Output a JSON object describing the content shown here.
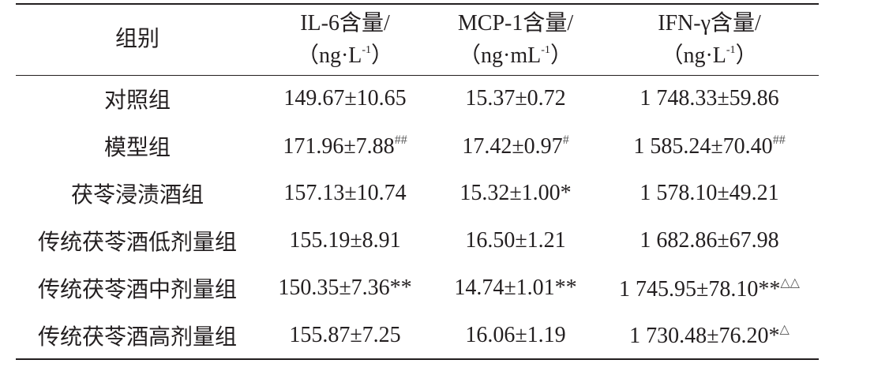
{
  "table": {
    "header": [
      {
        "line1": "组别"
      },
      {
        "line1": "IL-6含量/",
        "line2": "（ng·L",
        "sup": "-1",
        "end": "）"
      },
      {
        "line1": "MCP-1含量/",
        "line2": "（ng·mL",
        "sup": "-1",
        "end": "）"
      },
      {
        "line1": "IFN-γ含量/",
        "line2": "（ng·L",
        "sup": "-1",
        "end": "）"
      }
    ],
    "rows": [
      [
        {
          "text": "对照组"
        },
        {
          "text": "149.67±10.65"
        },
        {
          "text": "15.37±0.72"
        },
        {
          "text": "1 748.33±59.86"
        }
      ],
      [
        {
          "text": "模型组"
        },
        {
          "text": "171.96±7.88",
          "sup": "##"
        },
        {
          "text": "17.42±0.97",
          "sup": "#"
        },
        {
          "text": "1 585.24±70.40",
          "sup": "##"
        }
      ],
      [
        {
          "text": "茯苓浸渍酒组"
        },
        {
          "text": "157.13±10.74"
        },
        {
          "text": "15.32±1.00*"
        },
        {
          "text": "1 578.10±49.21"
        }
      ],
      [
        {
          "text": "传统茯苓酒低剂量组"
        },
        {
          "text": "155.19±8.91"
        },
        {
          "text": "16.50±1.21"
        },
        {
          "text": "1 682.86±67.98"
        }
      ],
      [
        {
          "text": "传统茯苓酒中剂量组"
        },
        {
          "text": "150.35±7.36**"
        },
        {
          "text": "14.74±1.01**"
        },
        {
          "text": "1 745.95±78.10**",
          "sup": "△△"
        }
      ],
      [
        {
          "text": "传统茯苓酒高剂量组"
        },
        {
          "text": "155.87±7.25"
        },
        {
          "text": "16.06±1.19"
        },
        {
          "text": "1 730.48±76.20*",
          "sup": "△"
        }
      ]
    ]
  }
}
